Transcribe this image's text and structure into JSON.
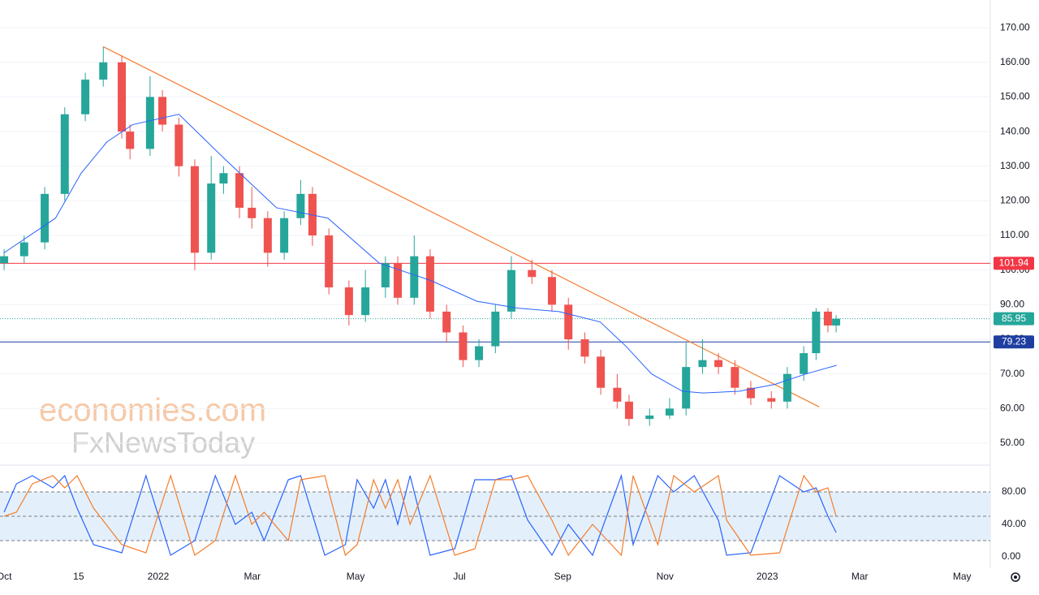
{
  "chart_data": [
    {
      "type": "candlestick",
      "watermark": [
        "economies.com",
        "FxNewsToday"
      ],
      "xlim": [
        -0.08,
        19.19
      ],
      "ylim": [
        43.9,
        178
      ],
      "xticks": [
        {
          "value": 0,
          "label": "Oct"
        },
        {
          "value": 1.45,
          "label": "15"
        },
        {
          "value": 3.0,
          "label": "2022"
        },
        {
          "value": 4.83,
          "label": "Mar"
        },
        {
          "value": 6.84,
          "label": "May"
        },
        {
          "value": 8.86,
          "label": "Jul"
        },
        {
          "value": 10.87,
          "label": "Sep"
        },
        {
          "value": 12.86,
          "label": "Nov"
        },
        {
          "value": 14.85,
          "label": "2023"
        },
        {
          "value": 16.65,
          "label": "Mar"
        },
        {
          "value": 18.64,
          "label": "May"
        }
      ],
      "yticks": [
        {
          "value": 50,
          "label": "50.00"
        },
        {
          "value": 60,
          "label": "60.00"
        },
        {
          "value": 70,
          "label": "70.00"
        },
        {
          "value": 80,
          "label": "80.00"
        },
        {
          "value": 90,
          "label": "90.00"
        },
        {
          "value": 100,
          "label": "100.00"
        },
        {
          "value": 110,
          "label": "110.00"
        },
        {
          "value": 120,
          "label": "120.00"
        },
        {
          "value": 130,
          "label": "130.00"
        },
        {
          "value": 140,
          "label": "140.00"
        },
        {
          "value": 150,
          "label": "150.00"
        },
        {
          "value": 160,
          "label": "160.00"
        },
        {
          "value": 170,
          "label": "170.00"
        }
      ],
      "up_color": "#26a69a",
      "down_color": "#ef5350",
      "x": [
        0,
        0.39,
        0.79,
        1.18,
        1.58,
        1.93,
        2.29,
        2.45,
        2.84,
        3.08,
        3.4,
        3.71,
        4.03,
        4.27,
        4.58,
        4.82,
        5.13,
        5.45,
        5.77,
        6.0,
        6.32,
        6.71,
        7.03,
        7.42,
        7.66,
        7.98,
        8.29,
        8.61,
        8.93,
        9.24,
        9.56,
        9.87,
        10.27,
        10.66,
        10.98,
        11.3,
        11.61,
        11.93,
        12.16,
        12.56,
        12.95,
        13.27,
        13.59,
        13.9,
        14.22,
        14.53,
        14.93,
        15.24,
        15.56,
        15.8,
        16.03,
        16.19
      ],
      "open": [
        102,
        104,
        108,
        122,
        145,
        155,
        160,
        140,
        135,
        150,
        142,
        130,
        105,
        125,
        128,
        118,
        115,
        105,
        115,
        122,
        110,
        95,
        87,
        95,
        102,
        92,
        104,
        88,
        82,
        74,
        78,
        88,
        100,
        98,
        90,
        80,
        75,
        66,
        62,
        57,
        58,
        60,
        72,
        74,
        72,
        66,
        63,
        62,
        70,
        76,
        88,
        84
      ],
      "high": [
        106,
        110,
        124,
        147,
        157,
        164.5,
        162,
        142,
        156,
        152,
        144,
        132,
        133,
        130,
        130,
        124,
        117,
        117,
        126,
        124,
        112,
        97,
        100,
        104,
        104,
        110,
        106,
        90,
        84,
        80,
        90,
        104,
        103,
        100,
        92,
        82,
        77,
        70,
        64,
        60,
        63,
        79,
        80,
        76,
        74,
        68,
        65,
        72,
        78,
        89,
        89,
        87
      ],
      "low": [
        100,
        102,
        106,
        120,
        143,
        153,
        138,
        132,
        133,
        140,
        127,
        100,
        103,
        122,
        115,
        112,
        101,
        103,
        113,
        107,
        93,
        84,
        85,
        92,
        90,
        90,
        86,
        79,
        72,
        72,
        76,
        86,
        96,
        88,
        77,
        73,
        64,
        60,
        55,
        55,
        57,
        58,
        70,
        70,
        64,
        61,
        60,
        60,
        68,
        74,
        82,
        82
      ],
      "close": [
        104,
        108,
        122,
        145,
        155,
        160,
        140,
        135,
        150,
        142,
        130,
        105,
        125,
        128,
        118,
        115,
        105,
        115,
        122,
        110,
        95,
        87,
        95,
        102,
        92,
        104,
        88,
        82,
        74,
        78,
        88,
        100,
        98,
        90,
        80,
        75,
        66,
        62,
        57,
        58,
        60,
        72,
        74,
        72,
        66,
        63,
        62,
        70,
        76,
        88,
        84,
        85.95
      ],
      "ma": {
        "color": "#2962ff",
        "x": [
          0,
          1,
          1.5,
          2,
          2.5,
          3.4,
          4.3,
          5.3,
          6.3,
          7.3,
          8.3,
          9.2,
          10,
          10.8,
          11.6,
          12.1,
          12.6,
          13.2,
          13.6,
          14.3,
          15,
          15.6,
          16.2
        ],
        "values": [
          105,
          115,
          128,
          137,
          142,
          145,
          132,
          118,
          115,
          102,
          97,
          91,
          89,
          88,
          85,
          78,
          70,
          65,
          64.5,
          65,
          67,
          70,
          72.5
        ]
      },
      "trendline": {
        "color": "#f57c2a",
        "x": [
          1.93,
          15.86
        ],
        "values": [
          164.5,
          60.5
        ]
      },
      "levels": [
        {
          "value": 101.94,
          "label": "101.94",
          "color": "#f23645",
          "style": "solid"
        },
        {
          "value": 85.95,
          "label": "85.95",
          "color": "#26a69a",
          "style": "dotted"
        },
        {
          "value": 79.23,
          "label": "79.23",
          "color": "#1e3fa0",
          "style": "solid"
        }
      ]
    },
    {
      "type": "stochastic",
      "xlim": [
        -0.08,
        19.19
      ],
      "ylim": [
        -14,
        112
      ],
      "yticks": [
        {
          "value": 0,
          "label": "0.00"
        },
        {
          "value": 40,
          "label": "40.00"
        },
        {
          "value": 80,
          "label": "80.00"
        }
      ],
      "bands": [
        20,
        50,
        80
      ],
      "band_color": "#e3f0fb",
      "x": [
        0,
        0.24,
        0.55,
        0.95,
        1.18,
        1.42,
        1.74,
        2.29,
        2.76,
        3.24,
        3.71,
        4.11,
        4.5,
        4.82,
        5.06,
        5.53,
        5.77,
        6.24,
        6.64,
        6.87,
        7.19,
        7.42,
        7.66,
        7.9,
        8.29,
        8.77,
        9.16,
        9.56,
        9.87,
        10.19,
        10.66,
        10.98,
        11.45,
        12.01,
        12.24,
        12.72,
        13.03,
        13.43,
        13.9,
        14.06,
        14.53,
        15.09,
        15.56,
        15.8,
        16.03,
        16.19
      ],
      "series": [
        {
          "color": "#2962ff",
          "values": [
            55,
            90,
            100,
            85,
            100,
            60,
            15,
            5,
            100,
            2,
            20,
            100,
            40,
            55,
            20,
            95,
            100,
            2,
            15,
            95,
            60,
            95,
            40,
            100,
            2,
            10,
            95,
            95,
            100,
            45,
            2,
            40,
            2,
            100,
            15,
            100,
            80,
            100,
            45,
            2,
            5,
            100,
            80,
            85,
            50,
            30
          ]
        },
        {
          "color": "#f57c2a",
          "values": [
            50,
            55,
            90,
            100,
            85,
            100,
            60,
            15,
            5,
            100,
            2,
            20,
            100,
            40,
            55,
            20,
            95,
            100,
            2,
            15,
            95,
            60,
            95,
            40,
            100,
            2,
            10,
            95,
            95,
            100,
            45,
            2,
            40,
            2,
            100,
            15,
            100,
            80,
            100,
            45,
            2,
            5,
            100,
            80,
            85,
            50
          ]
        }
      ]
    }
  ]
}
